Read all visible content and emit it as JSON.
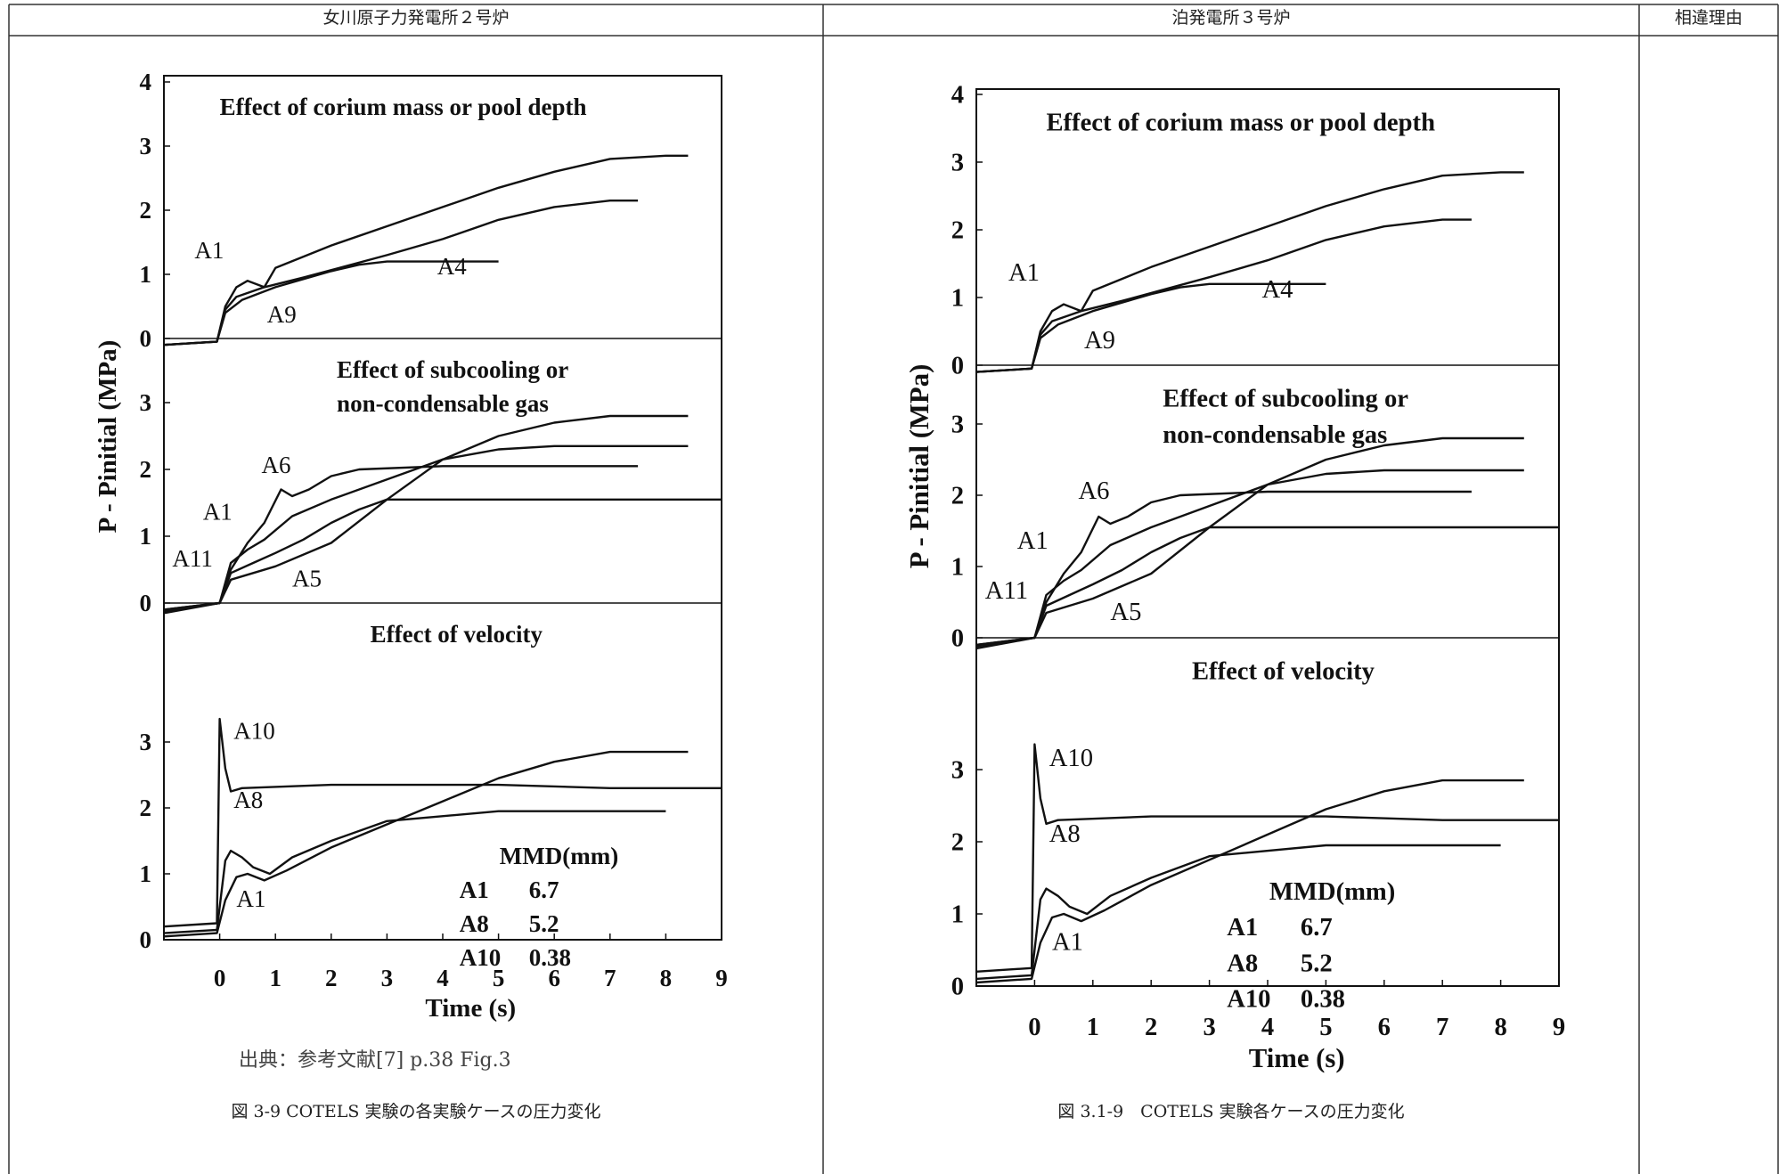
{
  "header": {
    "col1": "女川原子力発電所２号炉",
    "col2": "泊発電所３号炉",
    "col3": "相違理由"
  },
  "left": {
    "source": "出典：参考文献[7] p.38 Fig.3",
    "caption": "図 3-9 COTELS 実験の各実験ケースの圧力変化"
  },
  "right": {
    "caption": "図 3.1-9　COTELS 実験各ケースの圧力変化"
  },
  "chart_data": [
    {
      "type": "line",
      "ylabel": "P - Pinitial (MPa)",
      "xlabel": "Time (s)",
      "x_ticks": [
        "0",
        "1",
        "2",
        "3",
        "4",
        "5",
        "6",
        "7",
        "8",
        "9"
      ],
      "xlim": [
        -1,
        9
      ],
      "panels": [
        {
          "title": [
            "Effect of corium mass or pool depth"
          ],
          "yticks": [
            "0",
            "1",
            "2",
            "3",
            "4"
          ],
          "ylim": [
            -0.2,
            4
          ],
          "series": [
            {
              "name": "A1",
              "points": [
                [
                  -1,
                  -0.1
                ],
                [
                  -0.05,
                  -0.05
                ],
                [
                  0.1,
                  0.5
                ],
                [
                  0.3,
                  0.8
                ],
                [
                  0.5,
                  0.9
                ],
                [
                  0.8,
                  0.8
                ],
                [
                  1.0,
                  1.1
                ],
                [
                  2,
                  1.45
                ],
                [
                  3,
                  1.75
                ],
                [
                  4,
                  2.05
                ],
                [
                  5,
                  2.35
                ],
                [
                  6,
                  2.6
                ],
                [
                  7,
                  2.8
                ],
                [
                  8,
                  2.85
                ],
                [
                  8.4,
                  2.85
                ]
              ]
            },
            {
              "name": "",
              "points": [
                [
                  -1,
                  -0.1
                ],
                [
                  -0.05,
                  -0.05
                ],
                [
                  0.1,
                  0.45
                ],
                [
                  0.3,
                  0.65
                ],
                [
                  0.8,
                  0.8
                ],
                [
                  1.5,
                  0.95
                ],
                [
                  3,
                  1.3
                ],
                [
                  4,
                  1.55
                ],
                [
                  5,
                  1.85
                ],
                [
                  6,
                  2.05
                ],
                [
                  7,
                  2.15
                ],
                [
                  7.5,
                  2.15
                ]
              ]
            },
            {
              "name": "A9",
              "points": [
                [
                  -1,
                  -0.1
                ],
                [
                  -0.05,
                  -0.05
                ],
                [
                  0.1,
                  0.4
                ],
                [
                  0.4,
                  0.6
                ],
                [
                  1,
                  0.8
                ],
                [
                  2,
                  1.05
                ],
                [
                  2.5,
                  1.15
                ],
                [
                  3,
                  1.2
                ],
                [
                  5,
                  1.2
                ]
              ]
            }
          ],
          "labels": [
            {
              "text": "A1",
              "x": -0.45,
              "y": 1.25
            },
            {
              "text": "A4",
              "x": 3.9,
              "y": 1.0
            },
            {
              "text": "A9",
              "x": 0.85,
              "y": 0.25
            }
          ]
        },
        {
          "title": [
            "Effect of subcooling or",
            "non-condensable gas"
          ],
          "yticks": [
            "0",
            "1",
            "2",
            "3"
          ],
          "ylim": [
            -0.3,
            4
          ],
          "series": [
            {
              "name": "A6",
              "points": [
                [
                  -1,
                  -0.1
                ],
                [
                  0,
                  0
                ],
                [
                  0.2,
                  0.5
                ],
                [
                  0.5,
                  0.9
                ],
                [
                  0.8,
                  1.2
                ],
                [
                  1.1,
                  1.7
                ],
                [
                  1.3,
                  1.6
                ],
                [
                  1.6,
                  1.7
                ],
                [
                  2,
                  1.9
                ],
                [
                  2.5,
                  2.0
                ],
                [
                  4,
                  2.05
                ],
                [
                  7.5,
                  2.05
                ]
              ]
            },
            {
              "name": "A1",
              "points": [
                [
                  -1,
                  -0.1
                ],
                [
                  0,
                  0
                ],
                [
                  0.2,
                  0.6
                ],
                [
                  0.5,
                  0.8
                ],
                [
                  0.8,
                  0.95
                ],
                [
                  1.3,
                  1.3
                ],
                [
                  2,
                  1.55
                ],
                [
                  3,
                  1.85
                ],
                [
                  4,
                  2.15
                ],
                [
                  5,
                  2.3
                ],
                [
                  6,
                  2.35
                ],
                [
                  8.4,
                  2.35
                ]
              ]
            },
            {
              "name": "A11",
              "points": [
                [
                  -1,
                  -0.15
                ],
                [
                  0,
                  0
                ],
                [
                  0.2,
                  0.45
                ],
                [
                  0.6,
                  0.6
                ],
                [
                  1,
                  0.75
                ],
                [
                  1.5,
                  0.95
                ],
                [
                  2,
                  1.2
                ],
                [
                  2.5,
                  1.4
                ],
                [
                  3,
                  1.55
                ],
                [
                  9,
                  1.55
                ]
              ]
            },
            {
              "name": "A5",
              "points": [
                [
                  -1,
                  -0.12
                ],
                [
                  0,
                  0
                ],
                [
                  0.2,
                  0.35
                ],
                [
                  0.6,
                  0.45
                ],
                [
                  1,
                  0.55
                ],
                [
                  2,
                  0.9
                ],
                [
                  3,
                  1.55
                ],
                [
                  4,
                  2.15
                ],
                [
                  5,
                  2.5
                ],
                [
                  6,
                  2.7
                ],
                [
                  7,
                  2.8
                ],
                [
                  8.4,
                  2.8
                ]
              ]
            }
          ],
          "labels": [
            {
              "text": "A6",
              "x": 0.75,
              "y": 1.95
            },
            {
              "text": "A1",
              "x": -0.3,
              "y": 1.25
            },
            {
              "text": "A11",
              "x": -0.85,
              "y": 0.55
            },
            {
              "text": "A5",
              "x": 1.3,
              "y": 0.25
            }
          ]
        },
        {
          "title": [
            "Effect of velocity"
          ],
          "yticks": [
            "0",
            "1",
            "2",
            "3"
          ],
          "ylim": [
            -0.7,
            4
          ],
          "series": [
            {
              "name": "A10",
              "points": [
                [
                  -1,
                  0.2
                ],
                [
                  -0.05,
                  0.25
                ],
                [
                  0,
                  3.35
                ],
                [
                  0.1,
                  2.6
                ],
                [
                  0.2,
                  2.25
                ],
                [
                  0.4,
                  2.3
                ],
                [
                  2,
                  2.35
                ],
                [
                  5,
                  2.35
                ],
                [
                  7,
                  2.3
                ],
                [
                  9,
                  2.3
                ]
              ]
            },
            {
              "name": "A8",
              "points": [
                [
                  -1,
                  0.1
                ],
                [
                  -0.05,
                  0.15
                ],
                [
                  0.1,
                  1.2
                ],
                [
                  0.2,
                  1.35
                ],
                [
                  0.4,
                  1.25
                ],
                [
                  0.6,
                  1.1
                ],
                [
                  0.9,
                  1.0
                ],
                [
                  1.3,
                  1.25
                ],
                [
                  2,
                  1.5
                ],
                [
                  3,
                  1.8
                ],
                [
                  5,
                  1.95
                ],
                [
                  8,
                  1.95
                ]
              ]
            },
            {
              "name": "A1",
              "points": [
                [
                  -1,
                  0.05
                ],
                [
                  -0.05,
                  0.1
                ],
                [
                  0.1,
                  0.6
                ],
                [
                  0.3,
                  0.95
                ],
                [
                  0.5,
                  1.0
                ],
                [
                  0.8,
                  0.9
                ],
                [
                  1.2,
                  1.05
                ],
                [
                  2,
                  1.4
                ],
                [
                  3,
                  1.75
                ],
                [
                  4,
                  2.1
                ],
                [
                  5,
                  2.45
                ],
                [
                  6,
                  2.7
                ],
                [
                  7,
                  2.85
                ],
                [
                  8.4,
                  2.85
                ]
              ]
            }
          ],
          "labels": [
            {
              "text": "A10",
              "x": 0.25,
              "y": 3.05
            },
            {
              "text": "A8",
              "x": 0.25,
              "y": 2.0
            },
            {
              "text": "A1",
              "x": 0.3,
              "y": 0.5
            }
          ],
          "legend": {
            "title": "MMD(mm)",
            "rows": [
              [
                "A1",
                "6.7"
              ],
              [
                "A8",
                "5.2"
              ],
              [
                "A10",
                "0.38"
              ]
            ]
          }
        }
      ]
    },
    {
      "type": "line",
      "ylabel": "P - Pinitial (MPa)",
      "xlabel": "Time (s)",
      "x_ticks": [
        "0",
        "1",
        "2",
        "3",
        "4",
        "5",
        "6",
        "7",
        "8",
        "9"
      ],
      "xlim": [
        -1,
        9
      ],
      "note": "same figure reproduced in the right column"
    }
  ]
}
